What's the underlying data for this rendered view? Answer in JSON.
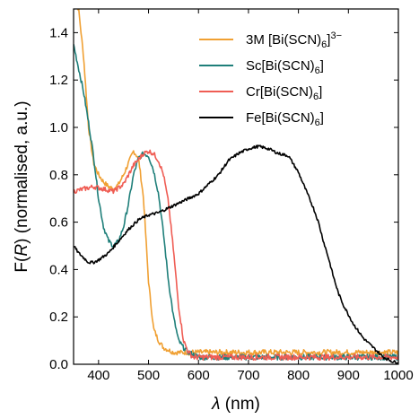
{
  "chart_data": {
    "type": "line",
    "xlabel": "λ (nm)",
    "ylabel": "F(R) (normalised, a.u.)",
    "xlim": [
      350,
      1000
    ],
    "ylim": [
      0.0,
      1.5
    ],
    "xticks": [
      400,
      500,
      600,
      700,
      800,
      900,
      1000
    ],
    "yticks": [
      0.0,
      0.2,
      0.4,
      0.6,
      0.8,
      1.0,
      1.2,
      1.4
    ],
    "xtick_labels": [
      "400",
      "500",
      "600",
      "700",
      "800",
      "900",
      "1000"
    ],
    "ytick_labels": [
      "0.0",
      "0.2",
      "0.4",
      "0.6",
      "0.8",
      "1.0",
      "1.2",
      "1.4"
    ],
    "grid": false,
    "legend_position": "top-right",
    "series": [
      {
        "name": "3M [Bi(SCN)6]3−",
        "legend": {
          "base": "3M [Bi(SCN)",
          "sub": "6",
          "close": "]",
          "sup": "3−"
        },
        "color": "#f0a033",
        "x": [
          350,
          360,
          370,
          380,
          390,
          400,
          410,
          420,
          430,
          440,
          450,
          460,
          470,
          480,
          490,
          500,
          510,
          520,
          530,
          540,
          550,
          560,
          570,
          580,
          600,
          650,
          700,
          750,
          800,
          850,
          900,
          950,
          1000
        ],
        "y": [
          1.55,
          1.5,
          1.3,
          1.0,
          0.85,
          0.8,
          0.77,
          0.75,
          0.74,
          0.76,
          0.8,
          0.85,
          0.9,
          0.87,
          0.7,
          0.35,
          0.15,
          0.1,
          0.07,
          0.06,
          0.05,
          0.05,
          0.05,
          0.05,
          0.05,
          0.05,
          0.05,
          0.05,
          0.05,
          0.05,
          0.05,
          0.05,
          0.05
        ]
      },
      {
        "name": "Sc[Bi(SCN)6]",
        "legend": {
          "base": "Sc[Bi(SCN)",
          "sub": "6",
          "close": "]",
          "sup": ""
        },
        "color": "#1f7f7a",
        "x": [
          350,
          360,
          370,
          380,
          390,
          400,
          410,
          420,
          430,
          440,
          450,
          460,
          470,
          480,
          490,
          500,
          510,
          520,
          530,
          540,
          550,
          560,
          570,
          580,
          590,
          600,
          650,
          700,
          750,
          800,
          850,
          900,
          950,
          1000
        ],
        "y": [
          1.35,
          1.25,
          1.15,
          1.02,
          0.88,
          0.7,
          0.58,
          0.52,
          0.5,
          0.52,
          0.58,
          0.68,
          0.8,
          0.87,
          0.89,
          0.88,
          0.82,
          0.72,
          0.55,
          0.35,
          0.2,
          0.1,
          0.07,
          0.05,
          0.04,
          0.03,
          0.03,
          0.03,
          0.03,
          0.03,
          0.03,
          0.03,
          0.03,
          0.03
        ]
      },
      {
        "name": "Cr[Bi(SCN)6]",
        "legend": {
          "base": "Cr[Bi(SCN)",
          "sub": "6",
          "close": "]",
          "sup": ""
        },
        "color": "#ef5d54",
        "x": [
          350,
          370,
          390,
          410,
          430,
          450,
          470,
          490,
          500,
          510,
          520,
          530,
          540,
          550,
          560,
          570,
          580,
          590,
          600,
          650,
          700,
          750,
          800,
          850,
          900,
          950,
          1000
        ],
        "y": [
          0.73,
          0.74,
          0.75,
          0.74,
          0.73,
          0.76,
          0.84,
          0.89,
          0.9,
          0.89,
          0.86,
          0.8,
          0.68,
          0.48,
          0.25,
          0.1,
          0.05,
          0.03,
          0.03,
          0.03,
          0.03,
          0.03,
          0.03,
          0.03,
          0.03,
          0.03,
          0.03
        ]
      },
      {
        "name": "Fe[Bi(SCN)6]",
        "legend": {
          "base": "Fe[Bi(SCN)",
          "sub": "6",
          "close": "]",
          "sup": ""
        },
        "color": "#000000",
        "x": [
          350,
          360,
          370,
          380,
          390,
          400,
          420,
          440,
          460,
          480,
          500,
          520,
          540,
          560,
          580,
          600,
          620,
          640,
          660,
          680,
          700,
          720,
          740,
          760,
          780,
          800,
          810,
          820,
          830,
          840,
          850,
          860,
          870,
          880,
          890,
          900,
          910,
          920,
          930,
          940,
          950,
          960,
          970,
          980,
          990,
          1000
        ],
        "y": [
          0.5,
          0.47,
          0.45,
          0.43,
          0.43,
          0.44,
          0.47,
          0.52,
          0.57,
          0.61,
          0.63,
          0.64,
          0.66,
          0.68,
          0.7,
          0.72,
          0.76,
          0.8,
          0.86,
          0.89,
          0.91,
          0.92,
          0.91,
          0.89,
          0.88,
          0.81,
          0.76,
          0.71,
          0.66,
          0.6,
          0.52,
          0.45,
          0.37,
          0.3,
          0.25,
          0.21,
          0.17,
          0.14,
          0.11,
          0.09,
          0.07,
          0.05,
          0.03,
          0.02,
          0.01,
          0.01
        ]
      }
    ]
  }
}
